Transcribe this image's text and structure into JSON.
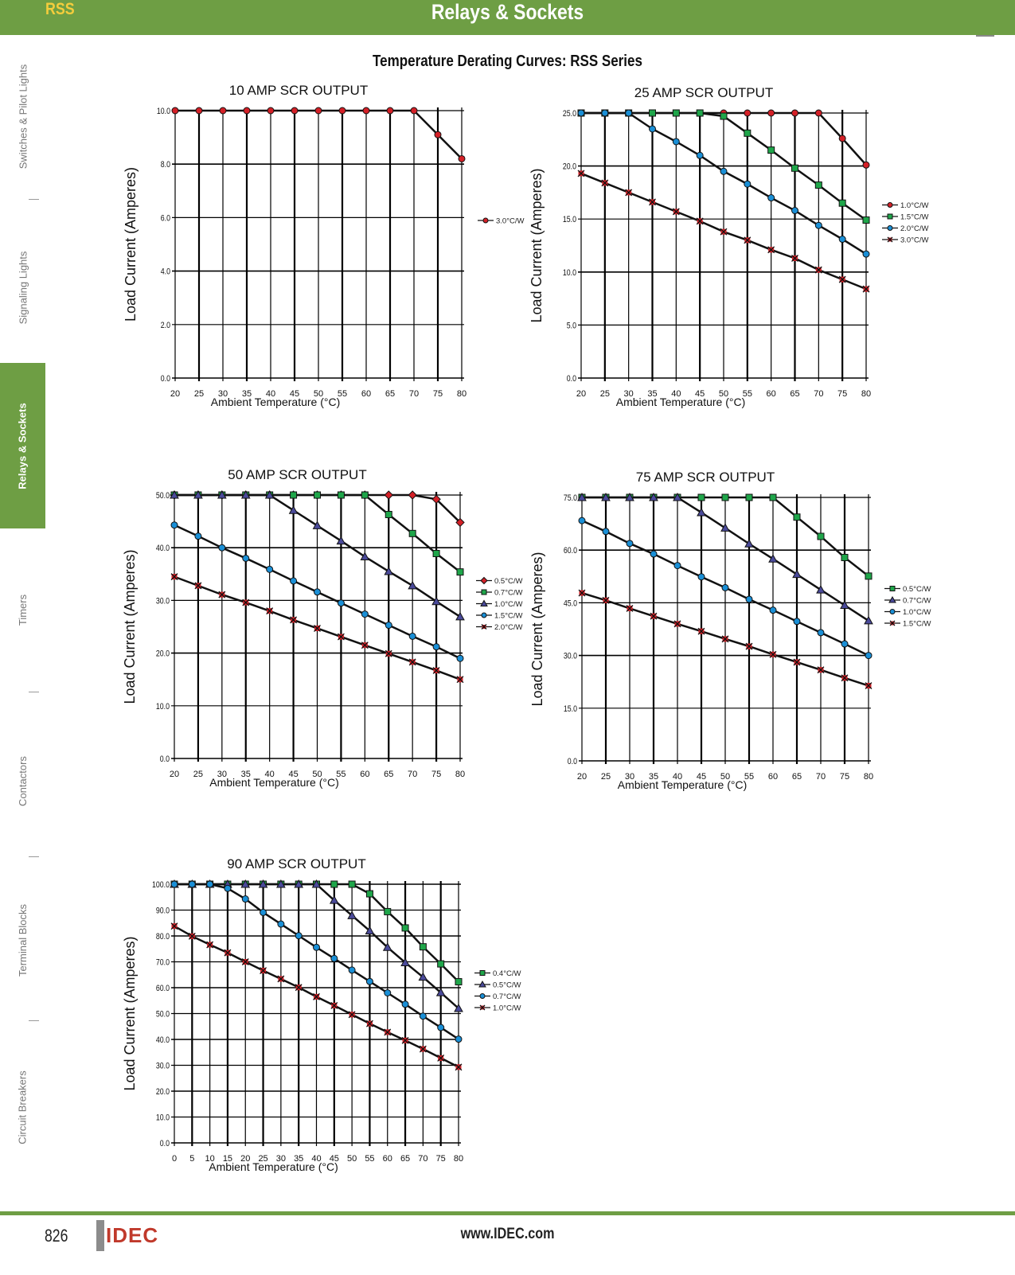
{
  "header": {
    "section_code": "RSS",
    "title": "Relays & Sockets"
  },
  "page_title": "Temperature Derating Curves: RSS Series",
  "sidebar": {
    "items": [
      {
        "label": "Switches & Pilot Lights",
        "active": false
      },
      {
        "label": "Signaling Lights",
        "active": false
      },
      {
        "label": "Relays & Sockets",
        "active": true
      },
      {
        "label": "Timers",
        "active": false
      },
      {
        "label": "Contactors",
        "active": false
      },
      {
        "label": "Terminal Blocks",
        "active": false
      },
      {
        "label": "Circuit Breakers",
        "active": false
      }
    ]
  },
  "footer": {
    "page_number": "826",
    "logo": "IDEC",
    "url": "www.IDEC.com"
  },
  "colors": {
    "brand_green": "#6e9e44",
    "rss_yellow": "#f4cd3c",
    "logo_red": "#c0392b"
  },
  "chart_data": [
    {
      "type": "line",
      "title": "10 AMP SCR OUTPUT",
      "xlabel": "Ambient Temperature (°C)",
      "ylabel": "Load Current (Amperes)",
      "x": [
        20,
        25,
        30,
        35,
        40,
        45,
        50,
        55,
        60,
        65,
        70,
        75,
        80
      ],
      "xlim": [
        20,
        80
      ],
      "ylim": [
        0,
        10
      ],
      "yticks": [
        0,
        2,
        4,
        6,
        8,
        10
      ],
      "grid": true,
      "legend_position": "right",
      "series": [
        {
          "name": "3.0°C/W",
          "marker": "circle",
          "color": "#d42027",
          "values": [
            10,
            10,
            10,
            10,
            10,
            10,
            10,
            10,
            10,
            10,
            10,
            9.1,
            8.2
          ]
        }
      ]
    },
    {
      "type": "line",
      "title": "25 AMP SCR OUTPUT",
      "xlabel": "Ambient Temperature (°C)",
      "ylabel": "Load Current (Amperes)",
      "x": [
        20,
        25,
        30,
        35,
        40,
        45,
        50,
        55,
        60,
        65,
        70,
        75,
        80
      ],
      "xlim": [
        20,
        80
      ],
      "ylim": [
        0,
        25
      ],
      "yticks": [
        0,
        5,
        10,
        15,
        20,
        25
      ],
      "grid": true,
      "legend_position": "right",
      "series": [
        {
          "name": "1.0°C/W",
          "marker": "circle",
          "color": "#d42027",
          "values": [
            25,
            25,
            25,
            25,
            25,
            25,
            25,
            25,
            25,
            25,
            25,
            22.6,
            20.1
          ]
        },
        {
          "name": "1.5°C/W",
          "marker": "square",
          "color": "#1fa64a",
          "values": [
            25,
            25,
            25,
            25,
            25,
            25,
            24.7,
            23.1,
            21.5,
            19.8,
            18.2,
            16.5,
            14.9
          ]
        },
        {
          "name": "2.0°C/W",
          "marker": "circle",
          "color": "#1a8fd6",
          "values": [
            25,
            25,
            25,
            23.5,
            22.3,
            21.0,
            19.5,
            18.3,
            17.0,
            15.8,
            14.4,
            13.1,
            11.7
          ]
        },
        {
          "name": "3.0°C/W",
          "marker": "x",
          "color": "#d42027",
          "values": [
            19.3,
            18.4,
            17.5,
            16.6,
            15.7,
            14.8,
            13.8,
            13.0,
            12.1,
            11.3,
            10.2,
            9.3,
            8.4
          ]
        }
      ]
    },
    {
      "type": "line",
      "title": "50 AMP SCR OUTPUT",
      "xlabel": "Ambient Temperature (°C)",
      "ylabel": "Load Current (Amperes)",
      "x": [
        20,
        25,
        30,
        35,
        40,
        45,
        50,
        55,
        60,
        65,
        70,
        75,
        80
      ],
      "xlim": [
        20,
        80
      ],
      "ylim": [
        0,
        50
      ],
      "yticks": [
        0,
        10,
        20,
        30,
        40,
        50
      ],
      "grid": true,
      "legend_position": "right",
      "series": [
        {
          "name": "0.5°C/W",
          "marker": "diamond",
          "color": "#d42027",
          "values": [
            50,
            50,
            50,
            50,
            50,
            50,
            50,
            50,
            50,
            50,
            50,
            49.2,
            44.8
          ]
        },
        {
          "name": "0.7°C/W",
          "marker": "square",
          "color": "#1fa64a",
          "values": [
            50,
            50,
            50,
            50,
            50,
            50,
            50,
            50,
            50,
            46.3,
            42.7,
            38.9,
            35.4
          ]
        },
        {
          "name": "1.0°C/W",
          "marker": "triangle",
          "color": "#4a4a9a",
          "values": [
            50,
            50,
            50,
            50,
            50,
            47.1,
            44.2,
            41.3,
            38.3,
            35.5,
            32.8,
            29.8,
            26.9
          ]
        },
        {
          "name": "1.5°C/W",
          "marker": "circle",
          "color": "#1a8fd6",
          "values": [
            44.3,
            42.2,
            40.0,
            38.0,
            35.9,
            33.7,
            31.6,
            29.5,
            27.4,
            25.3,
            23.2,
            21.2,
            19.0
          ]
        },
        {
          "name": "2.0°C/W",
          "marker": "x",
          "color": "#d42027",
          "values": [
            34.5,
            32.8,
            31.1,
            29.6,
            28.0,
            26.3,
            24.7,
            23.1,
            21.5,
            19.9,
            18.3,
            16.7,
            15.0
          ]
        }
      ]
    },
    {
      "type": "line",
      "title": "75 AMP SCR OUTPUT",
      "xlabel": "Ambient Temperature (°C)",
      "ylabel": "Load Current (Amperes)",
      "x": [
        20,
        25,
        30,
        35,
        40,
        45,
        50,
        55,
        60,
        65,
        70,
        75,
        80
      ],
      "xlim": [
        20,
        80
      ],
      "ylim": [
        0,
        75
      ],
      "yticks": [
        0,
        15,
        30,
        45,
        60,
        75
      ],
      "grid": true,
      "legend_position": "right",
      "series": [
        {
          "name": "0.5°C/W",
          "marker": "square",
          "color": "#1fa64a",
          "values": [
            75,
            75,
            75,
            75,
            75,
            75,
            75,
            75,
            75,
            69.4,
            63.9,
            57.9,
            52.6
          ]
        },
        {
          "name": "0.7°C/W",
          "marker": "triangle",
          "color": "#4a4a9a",
          "values": [
            75,
            75,
            75,
            75,
            75,
            70.7,
            66.3,
            61.8,
            57.5,
            53.1,
            48.7,
            44.3,
            39.9
          ]
        },
        {
          "name": "1.0°C/W",
          "marker": "circle",
          "color": "#1a8fd6",
          "values": [
            68.4,
            65.3,
            61.9,
            58.9,
            55.6,
            52.4,
            49.3,
            46.0,
            42.9,
            39.7,
            36.5,
            33.3,
            30.0
          ]
        },
        {
          "name": "1.5°C/W",
          "marker": "x",
          "color": "#d42027",
          "values": [
            47.8,
            45.7,
            43.4,
            41.2,
            39.0,
            36.9,
            34.7,
            32.6,
            30.3,
            28.1,
            25.9,
            23.6,
            21.4
          ]
        }
      ]
    },
    {
      "type": "line",
      "title": "90 AMP SCR OUTPUT",
      "xlabel": "Ambient Temperature (°C)",
      "ylabel": "Load Current (Amperes)",
      "x": [
        0,
        5,
        10,
        15,
        20,
        25,
        30,
        35,
        40,
        45,
        50,
        55,
        60,
        65,
        70,
        75,
        80
      ],
      "xlim": [
        0,
        80
      ],
      "ylim": [
        0,
        100
      ],
      "yticks": [
        0,
        10,
        20,
        30,
        40,
        50,
        60,
        70,
        80,
        90,
        100
      ],
      "grid": true,
      "legend_position": "right",
      "series": [
        {
          "name": "0.4°C/W",
          "marker": "square",
          "color": "#1fa64a",
          "values": [
            100,
            100,
            100,
            100,
            100,
            100,
            100,
            100,
            100,
            100,
            100,
            96.3,
            89.4,
            83.1,
            75.8,
            69.2,
            62.3
          ]
        },
        {
          "name": "0.5°C/W",
          "marker": "triangle",
          "color": "#4a4a9a",
          "values": [
            100,
            100,
            100,
            100,
            100,
            100,
            100,
            100,
            100,
            93.8,
            87.9,
            82.0,
            75.6,
            69.7,
            64.1,
            58.1,
            52.0
          ]
        },
        {
          "name": "0.7°C/W",
          "marker": "circle",
          "color": "#1a8fd6",
          "values": [
            100,
            100,
            100,
            98.4,
            94.3,
            89.1,
            84.6,
            80.1,
            75.6,
            71.3,
            66.8,
            62.4,
            58.0,
            53.6,
            49.0,
            44.6,
            40.1
          ]
        },
        {
          "name": "1.0°C/W",
          "marker": "x",
          "color": "#d42027",
          "values": [
            83.8,
            79.9,
            76.6,
            73.5,
            70.0,
            66.6,
            63.4,
            60.1,
            56.5,
            53.1,
            49.6,
            46.1,
            42.8,
            39.6,
            36.3,
            32.8,
            29.3
          ]
        }
      ]
    }
  ]
}
